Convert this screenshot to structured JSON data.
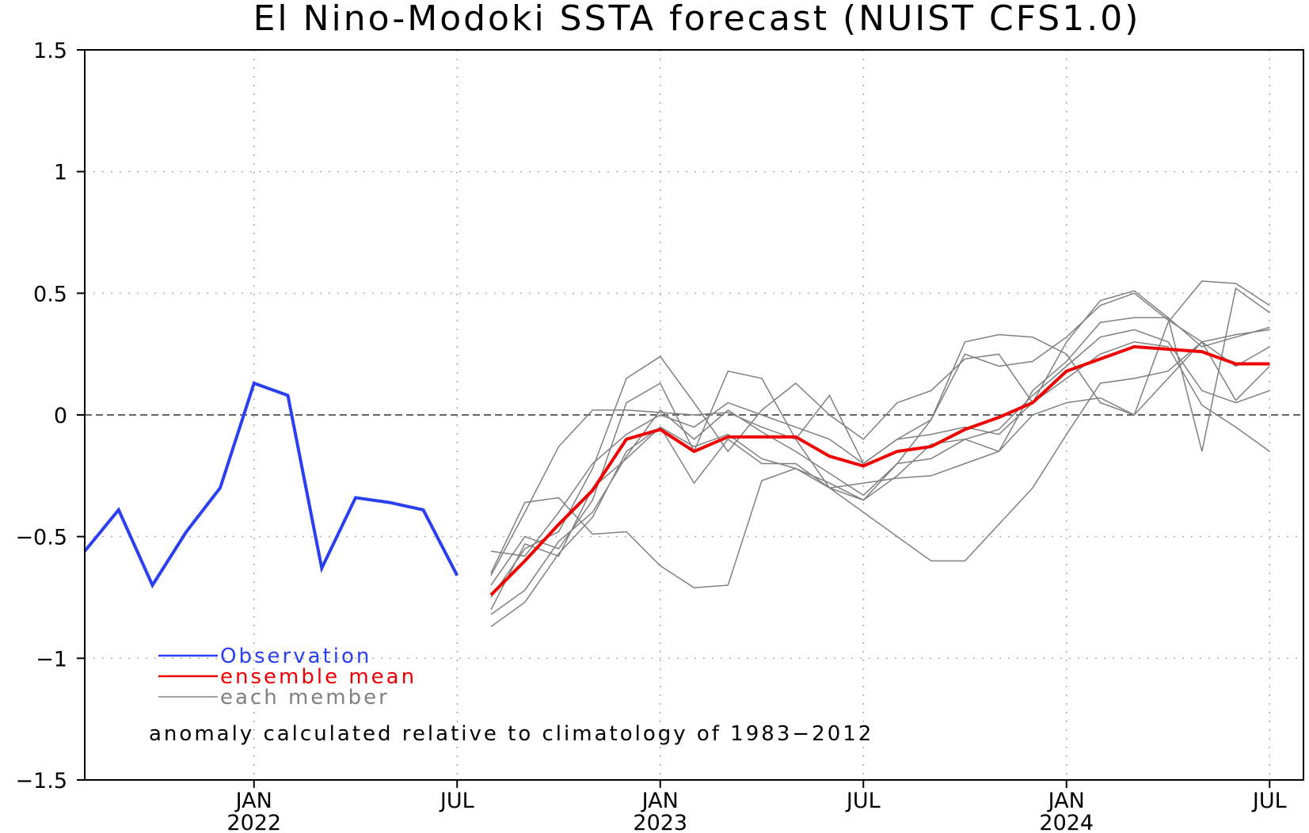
{
  "chart_data": {
    "type": "line",
    "title": "El Nino-Modoki SSTA forecast (NUIST CFS1.0)",
    "ylim": [
      -1.5,
      1.5
    ],
    "yticks": [
      1.5,
      1,
      0.5,
      0,
      -0.5,
      -1,
      -1.5
    ],
    "ytick_labels": [
      "1.5",
      "1",
      "0.5",
      "0",
      "−0.5",
      "−1",
      "−1.5"
    ],
    "xlim": [
      "2021-08",
      "2024-08"
    ],
    "xticks": [
      {
        "x": "2022-01",
        "month": "JAN",
        "year": "2022"
      },
      {
        "x": "2022-07",
        "month": "JUL",
        "year": ""
      },
      {
        "x": "2023-01",
        "month": "JAN",
        "year": "2023"
      },
      {
        "x": "2023-07",
        "month": "JUL",
        "year": ""
      },
      {
        "x": "2024-01",
        "month": "JAN",
        "year": "2024"
      },
      {
        "x": "2024-07",
        "month": "JUL",
        "year": ""
      }
    ],
    "grid": true,
    "zero_line": true,
    "legend": {
      "placement": "bottom-left",
      "entries": [
        {
          "label": "Observation",
          "color": "#2a3ff0"
        },
        {
          "label": "ensemble mean",
          "color": "#ee0000"
        },
        {
          "label": "each member",
          "color": "#808080"
        }
      ]
    },
    "annotation": "anomaly calculated relative to climatology of 1983−2012",
    "observation": {
      "x": [
        "2021-08",
        "2021-09",
        "2021-10",
        "2021-11",
        "2021-12",
        "2022-01",
        "2022-02",
        "2022-03",
        "2022-04",
        "2022-05",
        "2022-06",
        "2022-07"
      ],
      "values": [
        -0.56,
        -0.39,
        -0.7,
        -0.48,
        -0.3,
        0.13,
        0.08,
        -0.63,
        -0.34,
        -0.36,
        -0.39,
        -0.66
      ],
      "color": "#2a3ff0"
    },
    "ensemble_mean": {
      "x": [
        "2022-08",
        "2022-09",
        "2022-10",
        "2022-11",
        "2022-12",
        "2023-01",
        "2023-02",
        "2023-03",
        "2023-04",
        "2023-05",
        "2023-06",
        "2023-07",
        "2023-08",
        "2023-09",
        "2023-10",
        "2023-11",
        "2023-12",
        "2024-01",
        "2024-02",
        "2024-03",
        "2024-04",
        "2024-05",
        "2024-06",
        "2024-07"
      ],
      "values": [
        -0.74,
        -0.6,
        -0.45,
        -0.31,
        -0.1,
        -0.06,
        -0.15,
        -0.09,
        -0.09,
        -0.09,
        -0.17,
        -0.21,
        -0.15,
        -0.13,
        -0.06,
        -0.01,
        0.05,
        0.18,
        0.23,
        0.28,
        0.27,
        0.26,
        0.21,
        0.21
      ],
      "color": "#ee0000"
    },
    "members": {
      "x": [
        "2022-08",
        "2022-09",
        "2022-10",
        "2022-11",
        "2022-12",
        "2023-01",
        "2023-02",
        "2023-03",
        "2023-04",
        "2023-05",
        "2023-06",
        "2023-07",
        "2023-08",
        "2023-09",
        "2023-10",
        "2023-11",
        "2023-12",
        "2024-01",
        "2024-02",
        "2024-03",
        "2024-04",
        "2024-05",
        "2024-06",
        "2024-07"
      ],
      "color": "#808080",
      "series": [
        {
          "values": [
            -0.65,
            -0.36,
            -0.34,
            -0.49,
            -0.48,
            -0.62,
            -0.71,
            -0.7,
            -0.27,
            -0.22,
            -0.3,
            -0.4,
            -0.5,
            -0.6,
            -0.6,
            -0.45,
            -0.3,
            -0.08,
            0.13,
            0.15,
            0.18,
            0.3,
            0.33,
            0.35
          ]
        },
        {
          "values": [
            -0.8,
            -0.53,
            -0.58,
            -0.3,
            -0.18,
            -0.05,
            -0.28,
            -0.1,
            -0.2,
            -0.2,
            -0.3,
            -0.28,
            -0.26,
            -0.25,
            -0.2,
            -0.15,
            0.0,
            0.05,
            0.07,
            0.0,
            0.15,
            0.3,
            0.06,
            0.2
          ]
        },
        {
          "values": [
            -0.82,
            -0.72,
            -0.52,
            -0.4,
            -0.17,
            0.02,
            -0.1,
            0.02,
            -0.07,
            -0.15,
            -0.24,
            -0.33,
            -0.2,
            -0.18,
            -0.1,
            -0.15,
            0.1,
            0.22,
            0.38,
            0.4,
            0.4,
            0.28,
            0.32,
            0.36
          ]
        },
        {
          "values": [
            -0.87,
            -0.77,
            -0.57,
            -0.42,
            -0.15,
            -0.05,
            -0.13,
            -0.08,
            -0.18,
            -0.22,
            -0.28,
            -0.35,
            -0.25,
            -0.12,
            -0.1,
            -0.06,
            0.08,
            0.2,
            0.32,
            0.35,
            0.3,
            0.1,
            0.05,
            0.1
          ]
        },
        {
          "values": [
            -0.56,
            -0.58,
            -0.4,
            -0.2,
            -0.08,
            0.0,
            -0.05,
            0.05,
            0.0,
            -0.05,
            -0.1,
            -0.2,
            -0.1,
            -0.08,
            -0.05,
            -0.08,
            0.05,
            0.15,
            0.25,
            0.3,
            0.28,
            0.04,
            -0.05,
            -0.15
          ]
        },
        {
          "values": [
            -0.7,
            -0.5,
            -0.55,
            -0.35,
            0.05,
            0.13,
            -0.15,
            0.18,
            0.15,
            -0.1,
            0.08,
            -0.2,
            -0.1,
            -0.02,
            0.3,
            0.33,
            0.32,
            0.25,
            0.05,
            0.0,
            0.38,
            0.55,
            0.54,
            0.45
          ]
        },
        {
          "values": [
            -0.66,
            -0.4,
            -0.13,
            0.02,
            0.02,
            0.01,
            0.0,
            0.01,
            -0.05,
            -0.1,
            -0.3,
            -0.35,
            -0.2,
            -0.02,
            0.25,
            0.2,
            0.22,
            0.32,
            0.45,
            0.5,
            0.39,
            0.3,
            0.2,
            0.28
          ]
        },
        {
          "values": [
            -0.75,
            -0.55,
            -0.48,
            -0.22,
            0.15,
            0.24,
            0.05,
            -0.15,
            0.02,
            0.13,
            0.0,
            -0.1,
            0.05,
            0.1,
            0.23,
            0.25,
            0.05,
            0.3,
            0.47,
            0.51,
            0.4,
            -0.15,
            0.52,
            0.42
          ]
        }
      ]
    }
  }
}
